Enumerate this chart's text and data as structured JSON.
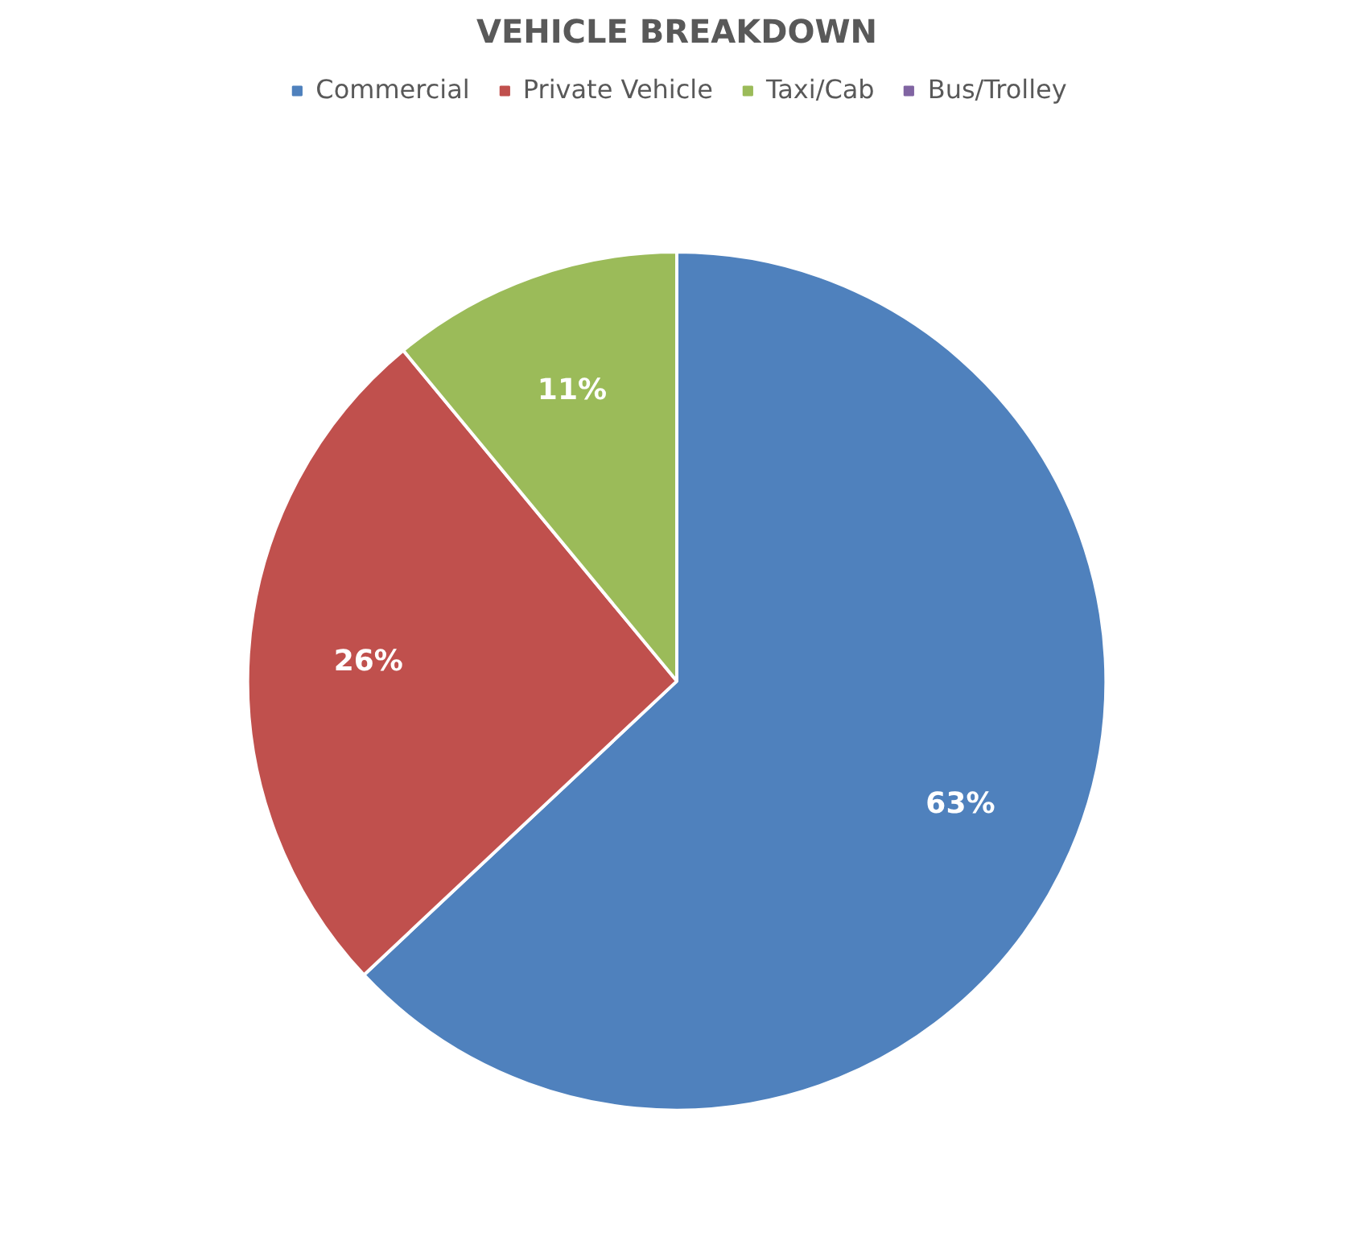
{
  "chart_data": {
    "type": "pie",
    "title": "VEHICLE BREAKDOWN",
    "categories": [
      "Commercial",
      "Private Vehicle",
      "Taxi/Cab",
      "Bus/Trolley"
    ],
    "values": [
      63,
      26,
      11,
      0
    ],
    "colors": [
      "#4f81bd",
      "#c0504d",
      "#9bbb59",
      "#8064a2"
    ],
    "value_labels": [
      "63%",
      "26%",
      "11%",
      null
    ],
    "legend": "top"
  }
}
